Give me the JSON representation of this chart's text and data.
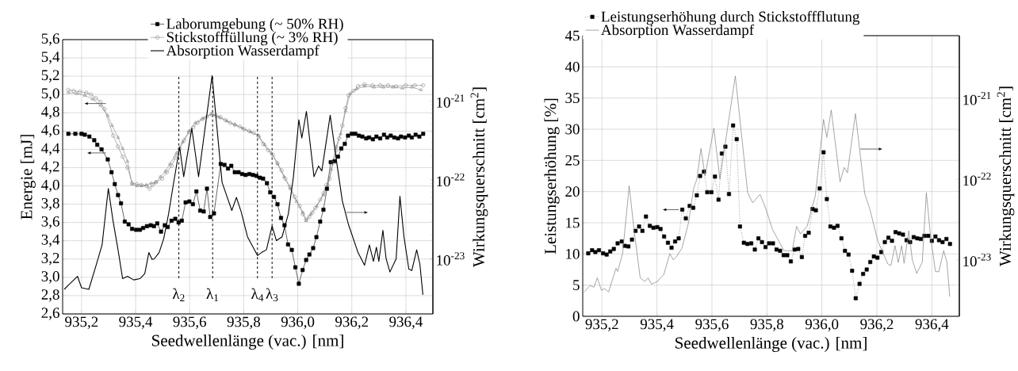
{
  "chart_data": [
    {
      "type": "line",
      "xlabel": "Seedwellenlänge (vac.) [nm]",
      "ylabel": "Energie [mJ]",
      "y2label": "Wirkungsquerschnitt [cm$^{2}$]",
      "xlim": [
        935.13,
        936.5
      ],
      "ylim": [
        2.6,
        5.6
      ],
      "y2lim": [
        2e-24,
        6e-21
      ],
      "log": "y2",
      "grid": true,
      "legend": "top",
      "xticks": [
        {
          "value": 935.2,
          "label": "935,2"
        },
        {
          "value": 935.4,
          "label": "935,4"
        },
        {
          "value": 935.6,
          "label": "935,6"
        },
        {
          "value": 935.8,
          "label": "935,8"
        },
        {
          "value": 936.0,
          "label": "936,0"
        },
        {
          "value": 936.2,
          "label": "936,2"
        },
        {
          "value": 936.4,
          "label": "936,4"
        }
      ],
      "yticks": [
        {
          "value": 2.6,
          "label": "2,6"
        },
        {
          "value": 2.8,
          "label": "2,8"
        },
        {
          "value": 3.0,
          "label": "3,0"
        },
        {
          "value": 3.2,
          "label": "3,2"
        },
        {
          "value": 3.4,
          "label": "3,4"
        },
        {
          "value": 3.6,
          "label": "3,6"
        },
        {
          "value": 3.8,
          "label": "3,8"
        },
        {
          "value": 4.0,
          "label": "4,0"
        },
        {
          "value": 4.2,
          "label": "4,2"
        },
        {
          "value": 4.4,
          "label": "4,4"
        },
        {
          "value": 4.6,
          "label": "4,6"
        },
        {
          "value": 4.8,
          "label": "4,8"
        },
        {
          "value": 5.0,
          "label": "5,0"
        },
        {
          "value": 5.2,
          "label": "5,2"
        },
        {
          "value": 5.4,
          "label": "5,4"
        },
        {
          "value": 5.6,
          "label": "5,6"
        }
      ],
      "y2ticks": [
        {
          "value": 1e-23,
          "label": "10$^{-23}$"
        },
        {
          "value": 1e-22,
          "label": "10$^{-22}$"
        },
        {
          "value": 1e-21,
          "label": "10$^{-21}$"
        }
      ],
      "ref_lines": [
        {
          "axis": "x",
          "value": 935.56,
          "label": "λ$_{2}$",
          "line_style": "dashed",
          "color": "#000000"
        },
        {
          "axis": "x",
          "value": 935.685,
          "label": "λ$_{1}$",
          "line_style": "dashed",
          "color": "#000000"
        },
        {
          "axis": "x",
          "value": 935.851,
          "label": "λ$_{4}$",
          "line_style": "dashed",
          "color": "#000000"
        },
        {
          "axis": "x",
          "value": 935.905,
          "label": "λ$_{3}$",
          "line_style": "dashed",
          "color": "#000000"
        }
      ],
      "series": [
        {
          "name": "Laborumgebung (~ 50% RH)",
          "color": "#000000",
          "marker": "square",
          "line_style": "solid",
          "x": [
            935.151,
            935.177,
            935.2,
            935.212,
            935.229,
            935.247,
            935.258,
            935.274,
            935.297,
            935.311,
            935.323,
            935.335,
            935.346,
            935.36,
            935.374,
            935.387,
            935.402,
            935.416,
            935.428,
            935.442,
            935.456,
            935.468,
            935.48,
            935.494,
            935.508,
            935.519,
            935.533,
            935.547,
            935.559,
            935.571,
            935.585,
            935.599,
            935.612,
            935.625,
            935.639,
            935.652,
            935.664,
            935.676,
            935.69,
            935.715,
            935.729,
            935.742,
            935.754,
            935.767,
            935.781,
            935.794,
            935.807,
            935.821,
            935.834,
            935.847,
            935.86,
            935.872,
            935.886,
            935.898,
            935.912,
            935.925,
            935.938,
            935.951,
            935.964,
            935.978,
            935.991,
            936.004,
            936.018,
            936.031,
            936.043,
            936.057,
            936.069,
            936.083,
            936.095,
            936.108,
            936.122,
            936.136,
            936.149,
            936.161,
            936.174,
            936.186,
            936.2,
            936.213,
            936.226,
            936.239,
            936.253,
            936.264,
            936.278,
            936.291,
            936.305,
            936.319,
            936.331,
            936.344,
            936.357,
            936.371,
            936.382,
            936.397,
            936.411,
            936.422,
            936.436,
            936.45,
            936.464
          ],
          "values": [
            4.57,
            4.57,
            4.57,
            4.56,
            4.54,
            4.5,
            4.45,
            4.4,
            4.29,
            4.15,
            4.02,
            3.9,
            3.81,
            3.61,
            3.58,
            3.53,
            3.52,
            3.52,
            3.54,
            3.56,
            3.57,
            3.56,
            3.59,
            3.5,
            3.57,
            3.55,
            3.62,
            3.64,
            3.6,
            3.62,
            3.82,
            3.83,
            3.8,
            3.94,
            3.73,
            3.72,
            3.97,
            3.66,
            3.7,
            4.24,
            4.23,
            4.19,
            4.22,
            4.15,
            4.15,
            4.13,
            4.12,
            4.13,
            4.12,
            4.11,
            4.09,
            4.08,
            4.03,
            3.93,
            3.88,
            3.8,
            3.65,
            3.57,
            3.36,
            3.3,
            3.11,
            2.93,
            3.08,
            3.19,
            3.25,
            3.32,
            3.44,
            3.61,
            3.74,
            3.97,
            4.26,
            4.27,
            4.32,
            4.41,
            4.46,
            4.55,
            4.57,
            4.57,
            4.55,
            4.54,
            4.52,
            4.53,
            4.51,
            4.54,
            4.52,
            4.56,
            4.53,
            4.55,
            4.53,
            4.52,
            4.54,
            4.53,
            4.55,
            4.53,
            4.56,
            4.54,
            4.57
          ]
        },
        {
          "name": "Stickstofffüllung (~ 3% RH)",
          "color": "#808080",
          "marker": "circle",
          "line_style": "solid",
          "x": [
            935.151,
            935.171,
            935.194,
            935.218,
            935.235,
            935.253,
            935.27,
            935.285,
            935.317,
            935.335,
            935.352,
            935.37,
            935.387,
            935.405,
            935.422,
            935.44,
            935.451,
            935.463,
            935.475,
            935.498,
            935.516,
            935.533,
            935.547,
            935.563,
            935.58,
            935.598,
            935.613,
            935.629,
            935.647,
            935.664,
            935.683,
            935.697,
            935.715,
            935.732,
            935.75,
            935.767,
            935.785,
            935.802,
            935.82,
            935.837,
            935.855,
            935.872,
            935.89,
            935.908,
            935.925,
            935.94,
            935.954,
            935.972,
            935.989,
            936.007,
            936.019,
            936.031,
            936.042,
            936.054,
            936.065,
            936.083,
            936.095,
            936.106,
            936.118,
            936.13,
            936.142,
            936.153,
            936.165,
            936.177,
            936.188,
            936.206,
            936.223,
            936.247,
            936.276,
            936.305,
            936.334,
            936.363,
            936.399,
            936.433,
            936.464
          ],
          "values": [
            5.05,
            5.04,
            5.03,
            5.02,
            5.0,
            4.96,
            4.92,
            4.84,
            4.55,
            4.43,
            4.32,
            4.2,
            4.03,
            4.02,
            4.01,
            4.0,
            3.97,
            4.01,
            4.04,
            4.08,
            4.15,
            4.22,
            4.31,
            4.41,
            4.5,
            4.59,
            4.64,
            4.69,
            4.73,
            4.76,
            4.78,
            4.77,
            4.75,
            4.72,
            4.69,
            4.67,
            4.65,
            4.62,
            4.6,
            4.58,
            4.54,
            4.46,
            4.39,
            4.34,
            4.25,
            4.17,
            4.08,
            3.99,
            3.88,
            3.78,
            3.69,
            3.63,
            3.66,
            3.71,
            3.76,
            3.85,
            3.92,
            4.01,
            4.08,
            4.25,
            4.39,
            4.52,
            4.66,
            4.85,
            4.99,
            5.04,
            5.09,
            5.11,
            5.1,
            5.1,
            5.1,
            5.09,
            5.1,
            5.1,
            5.1
          ]
        },
        {
          "color": "#808080",
          "marker": "triangle",
          "line_style": "solid",
          "x": [
            935.151,
            935.182,
            935.212,
            935.241,
            935.27,
            935.297,
            935.313,
            935.335,
            935.352,
            935.37,
            935.387,
            935.405,
            935.422,
            935.44,
            935.457,
            935.475,
            935.492,
            935.51,
            935.527,
            935.551,
            935.574,
            935.598,
            935.621,
            935.65,
            935.68,
            935.709,
            935.738,
            935.767,
            935.796,
            935.825,
            935.855,
            935.878,
            935.902,
            935.925,
            935.949,
            935.972,
            935.995,
            936.019,
            936.031,
            936.048,
            936.071,
            936.095,
            936.112,
            936.124,
            936.142,
            936.159,
            936.177,
            936.194,
            936.218,
            936.247,
            936.282,
            936.317,
            936.352,
            936.387,
            936.422,
            936.456
          ],
          "values": [
            5.02,
            5.01,
            4.99,
            4.95,
            4.88,
            4.77,
            4.66,
            4.53,
            4.41,
            4.27,
            4.02,
            4.0,
            4.0,
            4.01,
            4.03,
            4.04,
            4.1,
            4.16,
            4.24,
            4.36,
            4.48,
            4.6,
            4.69,
            4.74,
            4.79,
            4.75,
            4.71,
            4.67,
            4.63,
            4.59,
            4.55,
            4.45,
            4.36,
            4.24,
            4.1,
            3.97,
            3.83,
            3.71,
            3.62,
            3.69,
            3.78,
            3.9,
            4.01,
            4.18,
            4.43,
            4.57,
            4.82,
            5.01,
            5.06,
            5.09,
            5.08,
            5.08,
            5.08,
            5.07,
            5.08,
            5.05
          ]
        },
        {
          "name": "Absorption Wasserdampf",
          "color": "#000000",
          "marker": "none",
          "line_style": "solid",
          "axis": "y2",
          "x": [
            935.136,
            935.153,
            935.185,
            935.2,
            935.227,
            935.253,
            935.276,
            935.299,
            935.316,
            935.335,
            935.352,
            935.37,
            935.393,
            935.416,
            935.434,
            935.449,
            935.461,
            935.469,
            935.487,
            935.504,
            935.522,
            935.539,
            935.563,
            935.578,
            935.608,
            935.633,
            935.683,
            935.72,
            935.756,
            935.773,
            935.791,
            935.814,
            935.851,
            935.866,
            935.884,
            935.905,
            935.921,
            935.942,
            935.965,
            935.984,
            936.004,
            936.015,
            936.032,
            936.06,
            936.077,
            936.089,
            936.12,
            936.146,
            936.165,
            936.188,
            936.223,
            936.247,
            936.265,
            936.28,
            936.291,
            936.3,
            936.315,
            936.327,
            936.341,
            936.364,
            936.378,
            936.393,
            936.411,
            936.422,
            936.44,
            936.452,
            936.463
          ],
          "values": [
            4.1e-24,
            4.7e-24,
            6e-24,
            4.3e-24,
            4.1e-24,
            8.1e-24,
            1.5e-23,
            7.8e-23,
            3.1e-23,
            1.3e-23,
            5.6e-24,
            6e-24,
            5.4e-24,
            5.6e-24,
            6.5e-24,
            1.2e-23,
            9.8e-24,
            1e-23,
            1.2e-23,
            1.8e-23,
            3.7e-23,
            8.5e-23,
            2.6e-22,
            1.1e-22,
            4.5e-22,
            1.1e-22,
            2.1e-21,
            9.3e-23,
            4.1e-23,
            6e-23,
            3.9e-23,
            1.9e-23,
            1.1e-23,
            1.2e-23,
            1.3e-23,
            2.6e-23,
            1.7e-23,
            1.9e-23,
            3.7e-23,
            1.1e-22,
            5.8e-22,
            3.4e-22,
            7.4e-22,
            1.1e-22,
            1.5e-22,
            1.3e-22,
            6.6e-22,
            1.5e-22,
            5.4e-23,
            2.7e-23,
            1.2e-23,
            8.3e-24,
            1.5e-23,
            9.3e-24,
            1.4e-23,
            9.3e-24,
            2.3e-23,
            1e-23,
            6.8e-24,
            1e-23,
            6.2e-23,
            1.9e-23,
            7.4e-24,
            7.1e-24,
            1.3e-23,
            8.5e-24,
            3.5e-24
          ]
        }
      ]
    },
    {
      "type": "line",
      "xlabel": "Seedwellenlänge (vac.) [nm]",
      "ylabel": "Leistungserhöhung [%]",
      "y2label": "Wirkungsquerschnitt [cm$^{2}$]",
      "xlim": [
        935.13,
        936.5
      ],
      "ylim": [
        0,
        45
      ],
      "y2lim": [
        2e-24,
        6e-21
      ],
      "log": "y2",
      "grid": true,
      "legend": "top left",
      "xticks": [
        {
          "value": 935.2,
          "label": "935,2"
        },
        {
          "value": 935.4,
          "label": "935,4"
        },
        {
          "value": 935.6,
          "label": "935,6"
        },
        {
          "value": 935.8,
          "label": "935,8"
        },
        {
          "value": 936.0,
          "label": "936,0"
        },
        {
          "value": 936.2,
          "label": "936,2"
        },
        {
          "value": 936.4,
          "label": "936,4"
        }
      ],
      "yticks": [
        0,
        5,
        10,
        15,
        20,
        25,
        30,
        35,
        40,
        45
      ],
      "y2ticks": [
        {
          "value": 1e-23,
          "label": "10$^{-23}$"
        },
        {
          "value": 1e-22,
          "label": "10$^{-22}$"
        },
        {
          "value": 1e-21,
          "label": "10$^{-21}$"
        }
      ],
      "series": [
        {
          "name": "Leistungserhöhung durch Stickstoffflutung",
          "color": "#000000",
          "marker": "square",
          "line_style": "dotted",
          "x": [
            935.15,
            935.164,
            935.176,
            935.189,
            935.204,
            935.217,
            935.23,
            935.243,
            935.257,
            935.272,
            935.283,
            935.296,
            935.309,
            935.322,
            935.335,
            935.347,
            935.36,
            935.374,
            935.387,
            935.401,
            935.413,
            935.426,
            935.44,
            935.453,
            935.466,
            935.479,
            935.492,
            935.505,
            935.519,
            935.532,
            935.545,
            935.557,
            935.571,
            935.583,
            935.598,
            935.611,
            935.624,
            935.636,
            935.649,
            935.662,
            935.677,
            935.69,
            935.702,
            935.716,
            935.729,
            935.743,
            935.756,
            935.769,
            935.782,
            935.795,
            935.808,
            935.822,
            935.835,
            935.848,
            935.861,
            935.874,
            935.887,
            935.901,
            935.914,
            935.927,
            935.939,
            935.952,
            935.966,
            935.978,
            935.992,
            936.006,
            936.018,
            936.031,
            936.044,
            936.057,
            936.071,
            936.084,
            936.097,
            936.11,
            936.123,
            936.137,
            936.15,
            936.163,
            936.176,
            936.189,
            936.202,
            936.216,
            936.229,
            936.242,
            936.255,
            936.268,
            936.281,
            936.295,
            936.308,
            936.321,
            936.334,
            936.347,
            936.36,
            936.373,
            936.387,
            936.4,
            936.413,
            936.426,
            936.439,
            936.453,
            936.466
          ],
          "values": [
            10.1,
            10.6,
            10.3,
            10.6,
            10.1,
            9.9,
            10.4,
            10.8,
            11.7,
            12.0,
            11.3,
            11.2,
            12.3,
            13.7,
            14.4,
            13.7,
            16.0,
            14.5,
            14.2,
            14.3,
            14.0,
            12.8,
            11.8,
            11.0,
            12.0,
            12.5,
            17.1,
            15.7,
            17.7,
            17.4,
            19.4,
            22.5,
            23.2,
            19.9,
            19.9,
            22.4,
            18.7,
            26.1,
            27.2,
            19.6,
            30.6,
            28.4,
            14.4,
            11.8,
            11.6,
            11.7,
            10.7,
            12.5,
            11.9,
            11.1,
            11.7,
            11.7,
            10.7,
            10.5,
            9.8,
            9.8,
            8.8,
            10.7,
            10.8,
            9.5,
            12.9,
            13.4,
            17.2,
            17.0,
            20.5,
            26.3,
            18.8,
            14.4,
            14.2,
            14.5,
            12.5,
            10.5,
            9.9,
            7.3,
            2.9,
            5.2,
            6.8,
            7.5,
            8.7,
            9.6,
            9.4,
            10.3,
            11.9,
            12.6,
            12.1,
            13.5,
            13.3,
            13.1,
            12.2,
            11.9,
            12.7,
            12.5,
            12.4,
            12.9,
            12.9,
            12.1,
            12.8,
            12.2,
            11.9,
            12.4,
            11.6
          ]
        },
        {
          "name": "Absorption Wasserdampf",
          "color": "#808080",
          "marker": "none",
          "line_style": "solid",
          "axis": "y2",
          "x": [
            935.135,
            935.156,
            935.171,
            935.183,
            935.198,
            935.21,
            935.224,
            935.251,
            935.257,
            935.275,
            935.299,
            935.317,
            935.339,
            935.356,
            935.368,
            935.38,
            935.401,
            935.425,
            935.447,
            935.459,
            935.471,
            935.491,
            935.515,
            935.533,
            935.545,
            935.56,
            935.575,
            935.607,
            935.629,
            935.685,
            935.73,
            935.748,
            935.775,
            935.796,
            935.82,
            935.862,
            935.892,
            935.908,
            935.922,
            935.946,
            935.976,
            936.006,
            936.018,
            936.034,
            936.066,
            936.081,
            936.093,
            936.122,
            936.156,
            936.174,
            936.204,
            936.24,
            936.251,
            936.266,
            936.278,
            936.29,
            936.299,
            936.316,
            936.329,
            936.345,
            936.365,
            936.38,
            936.395,
            936.413,
            936.425,
            936.443,
            936.455,
            936.465
          ],
          "values": [
            4e-24,
            4.8e-24,
            4.6e-24,
            6e-24,
            4.2e-24,
            4.4e-24,
            4e-24,
            7.9e-24,
            7.2e-24,
            1.2e-23,
            8.3e-23,
            2.3e-23,
            6e-24,
            5.4e-24,
            6e-24,
            5e-24,
            5.4e-24,
            6.6e-24,
            1.2e-23,
            1e-23,
            1.1e-23,
            1.4e-23,
            2.9e-23,
            7.6e-23,
            1e-22,
            2.4e-22,
            1.1e-22,
            4.3e-22,
            1e-22,
            1.9e-21,
            6.8e-23,
            5.1e-23,
            6.5e-23,
            4.3e-23,
            2.4e-23,
            1.3e-23,
            1.3e-23,
            2.6e-23,
            2.1e-23,
            2.6e-23,
            6.2e-23,
            5.5e-22,
            3.3e-22,
            7.2e-22,
            9.3e-23,
            1.4e-22,
            1.2e-22,
            6.5e-22,
            6.6e-23,
            4.3e-23,
            1.7e-23,
            8.9e-24,
            8.5e-24,
            1.5e-23,
            9.3e-24,
            1.5e-23,
            9.1e-24,
            2.3e-23,
            1e-23,
            6.8e-24,
            9.3e-24,
            6.8e-23,
            2e-23,
            7.2e-24,
            7.1e-24,
            1.3e-23,
            9.3e-24,
            3.5e-24
          ]
        }
      ]
    }
  ]
}
